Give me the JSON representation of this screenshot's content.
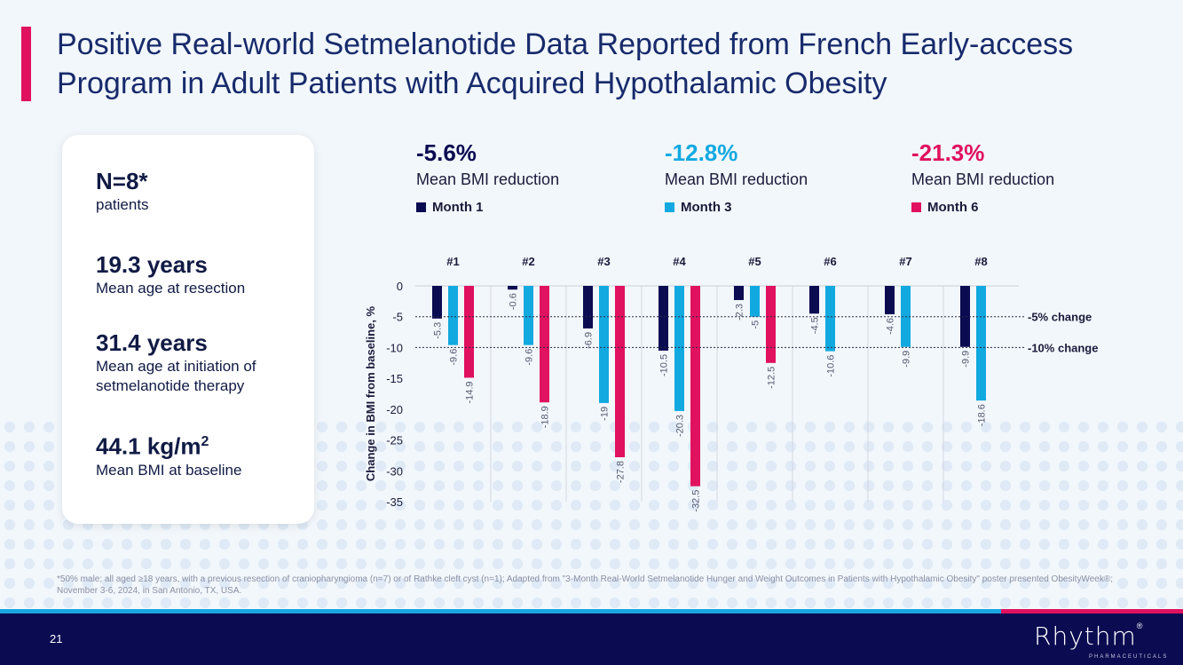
{
  "title": "Positive Real-world Setmelanotide Data Reported from French Early-access Program in Adult Patients with Acquired Hypothalamic Obesity",
  "stats": [
    {
      "value": "N=8*",
      "label": "patients"
    },
    {
      "value": "19.3 years",
      "label": "Mean age at resection"
    },
    {
      "value": "31.4 years",
      "label": "Mean age at initiation of setmelanotide therapy"
    },
    {
      "value": "44.1 kg/m",
      "sup": "2",
      "label": "Mean BMI at baseline"
    }
  ],
  "summaries": [
    {
      "pct": "-5.6%",
      "label": "Mean BMI reduction",
      "legend": "Month 1",
      "color": "#0b0b52"
    },
    {
      "pct": "-12.8%",
      "label": "Mean BMI reduction",
      "legend": "Month 3",
      "color": "#12a9e0"
    },
    {
      "pct": "-21.3%",
      "label": "Mean BMI reduction",
      "legend": "Month 6",
      "color": "#e0115f"
    }
  ],
  "chart_data": {
    "type": "bar",
    "categories": [
      "#1",
      "#2",
      "#3",
      "#4",
      "#5",
      "#6",
      "#7",
      "#8"
    ],
    "series": [
      {
        "name": "Month 1",
        "color": "#0b0b52",
        "values": [
          -5.3,
          -0.6,
          -6.9,
          -10.5,
          -2.3,
          -4.5,
          -4.6,
          -9.9
        ]
      },
      {
        "name": "Month 3",
        "color": "#12a9e0",
        "values": [
          -9.6,
          -9.6,
          -19,
          -20.3,
          -5,
          -10.6,
          -9.9,
          -18.6
        ]
      },
      {
        "name": "Month 6",
        "color": "#e0115f",
        "values": [
          -14.9,
          -18.9,
          -27.8,
          -32.5,
          -12.5,
          null,
          null,
          null
        ]
      }
    ],
    "ylabel": "Change in BMI from baseline, %",
    "ylim": [
      -35,
      0
    ],
    "yticks": [
      0,
      -5,
      -10,
      -15,
      -20,
      -25,
      -30,
      -35
    ],
    "reference_lines": [
      {
        "value": -5,
        "label": "-5% change"
      },
      {
        "value": -10,
        "label": "-10% change"
      }
    ]
  },
  "footnote": "*50% male; all aged ≥18 years, with a previous resection of craniopharyngioma (n=7) or of Rathke cleft cyst (n=1); Adapted from \"3-Month Real-World Setmelanotide Hunger and Weight Outcomes in Patients with Hypothalamic Obesity\" poster presented ObesityWeek®; November 3-6, 2024, in San Antonio, TX, USA.",
  "page_number": "21",
  "logo": {
    "name": "Rhythm",
    "reg": "®",
    "sub": "PHARMACEUTICALS"
  }
}
